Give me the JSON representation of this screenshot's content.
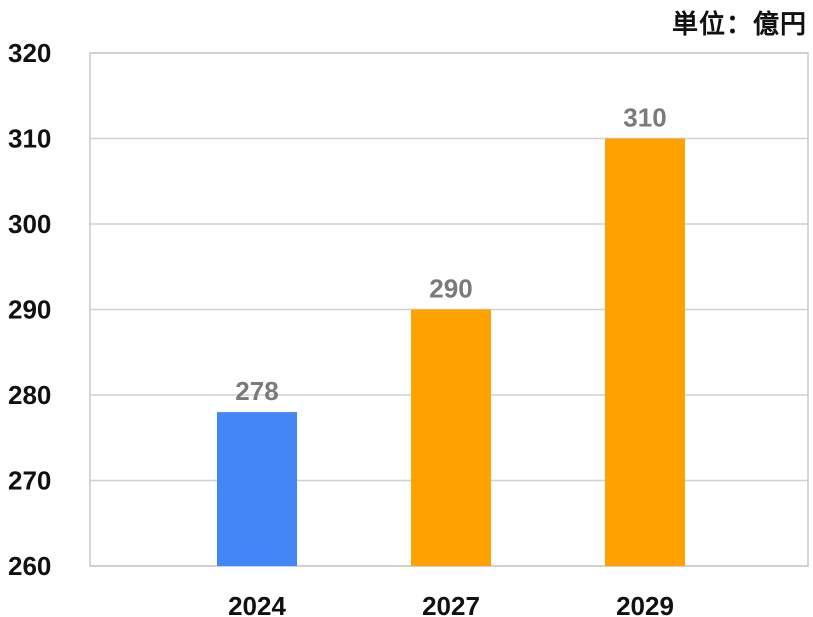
{
  "unit_label": "単位：億円",
  "chart_data": {
    "type": "bar",
    "categories": [
      "2024",
      "2027",
      "2029"
    ],
    "values": [
      278,
      290,
      310
    ],
    "data_labels": [
      "278",
      "290",
      "310"
    ],
    "bar_colors": [
      "#4287F5",
      "#FFA100",
      "#FFA100"
    ],
    "ylim": [
      260,
      320
    ],
    "yticks": [
      260,
      270,
      280,
      290,
      300,
      310,
      320
    ],
    "ytick_labels": [
      "260",
      "270",
      "280",
      "290",
      "300",
      "310",
      "320"
    ],
    "grid": true,
    "title": "",
    "xlabel": "",
    "ylabel": ""
  }
}
